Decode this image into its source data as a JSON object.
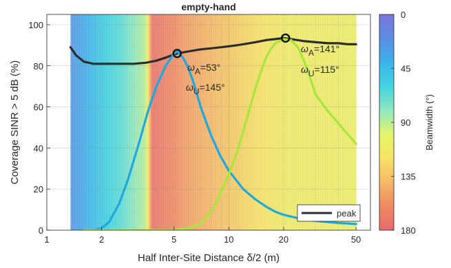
{
  "chart_data": {
    "type": "line",
    "title": "empty-hand",
    "xlabel": "Half Inter-Site Distance δ/2 (m)",
    "ylabel": "Coverage SINR > 5 dB (%)",
    "xscale": "log",
    "xlim": [
      1,
      60
    ],
    "ylim": [
      0,
      105
    ],
    "xticks": [
      1,
      2,
      5,
      10,
      20,
      50
    ],
    "xtick_labels": [
      "1",
      "2",
      "5",
      "10",
      "20",
      "50"
    ],
    "yticks": [
      0,
      20,
      40,
      60,
      80,
      100
    ],
    "grid": true,
    "legend": {
      "position": "bottom-right",
      "entries": [
        "peak"
      ]
    },
    "colorbar": {
      "label": "Beamwidth (°)",
      "ticks": [
        0,
        45,
        90,
        135,
        180
      ],
      "range": [
        0,
        180
      ],
      "stops": [
        "#7a75d9",
        "#5b8ee6",
        "#3bb3ea",
        "#42d4e0",
        "#8ee8bf",
        "#e6f56a",
        "#f7e364",
        "#f5b865",
        "#f08a63",
        "#e66a6a"
      ]
    },
    "background_beamwidth": {
      "x_start": 1.35,
      "x_end": 50,
      "x": [
        1.35,
        1.6,
        1.9,
        2.2,
        2.6,
        3.0,
        3.5,
        3.8,
        4.5,
        6,
        8,
        11,
        15,
        20,
        30,
        50
      ],
      "beamwidth": [
        25,
        35,
        50,
        60,
        68,
        80,
        90,
        175,
        165,
        150,
        140,
        130,
        120,
        112,
        110,
        108
      ]
    },
    "series": [
      {
        "name": "peak",
        "color": "#2d2d2d",
        "x": [
          1.35,
          1.45,
          1.6,
          1.8,
          2.0,
          2.3,
          2.6,
          3.0,
          3.5,
          4.0,
          4.5,
          5.2,
          6.0,
          7.0,
          8.0,
          9.0,
          10.0,
          11.0,
          12.0,
          14.0,
          16.0,
          18.0,
          20.0,
          22.0,
          24.0,
          26.0,
          30.0,
          35.0,
          40.0,
          45.0,
          50.0
        ],
        "y": [
          89,
          85,
          82,
          81,
          81,
          81,
          81,
          81,
          81.5,
          82.5,
          84,
          86,
          87,
          88,
          88.5,
          89,
          89.5,
          90,
          90.5,
          91.5,
          92.5,
          93,
          93.5,
          93,
          92.5,
          92,
          91.5,
          91,
          91,
          90.5,
          90.5
        ]
      },
      {
        "name": "",
        "color": "#1fa8e0",
        "x": [
          1.6,
          1.8,
          2.0,
          2.2,
          2.5,
          2.8,
          3.2,
          3.6,
          4.0,
          4.5,
          5.0,
          5.2,
          5.6,
          6.0,
          6.5,
          7.0,
          8.0,
          9.0,
          10.0,
          12.0,
          14.0,
          16.0,
          18.0,
          20.0,
          25.0,
          30.0,
          40.0,
          50.0
        ],
        "y": [
          0,
          0,
          1,
          4,
          13,
          25,
          42,
          58,
          70,
          80,
          86,
          87,
          84,
          79,
          70,
          60,
          46,
          36,
          29,
          20,
          15,
          11.5,
          9,
          7.5,
          5.5,
          4.5,
          3.5,
          3
        ]
      },
      {
        "name": "",
        "color": "#a9e63c",
        "x": [
          1.6,
          3.0,
          4.0,
          5.0,
          6.0,
          7.0,
          7.8,
          8.5,
          9.0,
          10.0,
          11.0,
          12.0,
          13.0,
          14.0,
          15.0,
          16.0,
          17.0,
          18.0,
          20.0,
          22.0,
          24.0,
          26.0,
          28.0,
          30.0,
          35.0,
          40.0,
          50.0
        ],
        "y": [
          0,
          0,
          0,
          0,
          1,
          3,
          8,
          13,
          18,
          27,
          37,
          48,
          59,
          69,
          77,
          84,
          88,
          91,
          93,
          92.5,
          89,
          82,
          74,
          66,
          58,
          52,
          42
        ]
      }
    ],
    "markers": [
      {
        "x": 5.2,
        "y": 86
      },
      {
        "x": 20.5,
        "y": 93.5
      }
    ],
    "annotations": [
      {
        "a_sym": "ω",
        "a_sub": "A",
        "a_val": "=53°",
        "u_sym": "ω",
        "u_sub": "U",
        "u_val": "=145°"
      },
      {
        "a_sym": "ω",
        "a_sub": "A",
        "a_val": "=141°",
        "u_sym": "ω",
        "u_sub": "U",
        "u_val": "=115°"
      }
    ]
  }
}
